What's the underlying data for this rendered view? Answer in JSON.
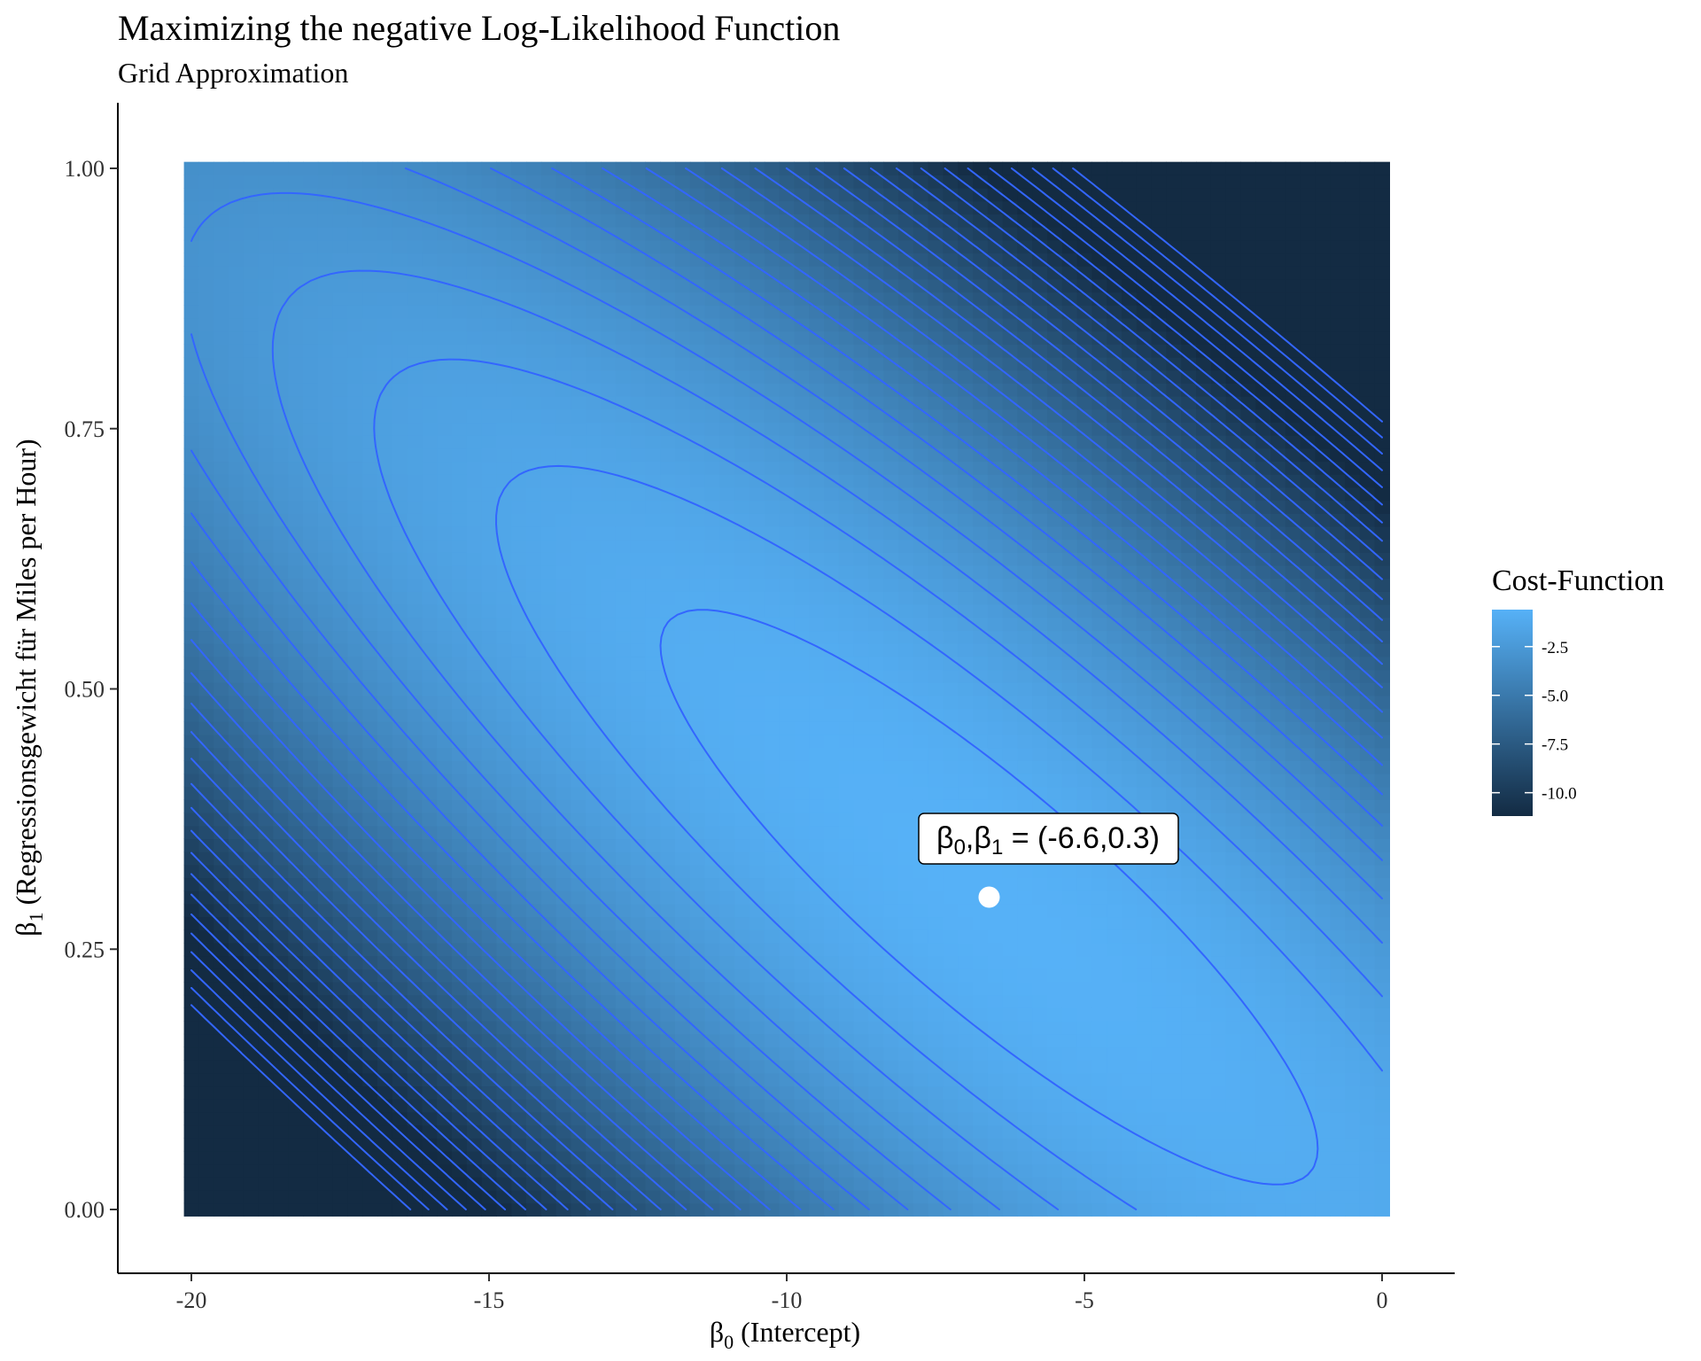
{
  "chart_data": {
    "type": "heatmap",
    "title": "Maximizing the negative Log-Likelihood Function",
    "subtitle": "Grid Approximation",
    "xlabel": {
      "symbol": "β",
      "sub": "0",
      "text": " (Intercept)"
    },
    "ylabel": {
      "symbol": "β",
      "sub": "1",
      "text": " (Regressionsgewicht für Miles per Hour)"
    },
    "xlim": [
      -20,
      0
    ],
    "ylim": [
      0,
      1
    ],
    "x_ticks": [
      -20,
      -15,
      -10,
      -5,
      0
    ],
    "x_tick_labels": [
      "-20",
      "-15",
      "-10",
      "-5",
      "0"
    ],
    "y_ticks": [
      0,
      0.25,
      0.5,
      0.75,
      1
    ],
    "y_tick_labels": [
      "0.00",
      "0.25",
      "0.50",
      "0.75",
      "1.00"
    ],
    "fill_range": [
      -11.2,
      -0.6
    ],
    "colors": {
      "low": "#132B43",
      "high": "#56B1F7",
      "contour": "#3366ff",
      "point": "#ffffff"
    },
    "optimum": {
      "x": -6.6,
      "y": 0.3
    },
    "contours": "on",
    "grid": "off",
    "legend": {
      "title": "Cost-Function",
      "placement": "right",
      "ticks": [
        -2.5,
        -5.0,
        -7.5,
        -10.0
      ],
      "tick_labels": [
        "-2.5",
        "-5.0",
        "-7.5",
        "-10.0"
      ]
    },
    "annotation": {
      "b0": "β",
      "b0_sub": "0",
      "sep": ",",
      "b1": "β",
      "b1_sub": "1",
      "text": " = (-6.6,0.3)"
    }
  }
}
